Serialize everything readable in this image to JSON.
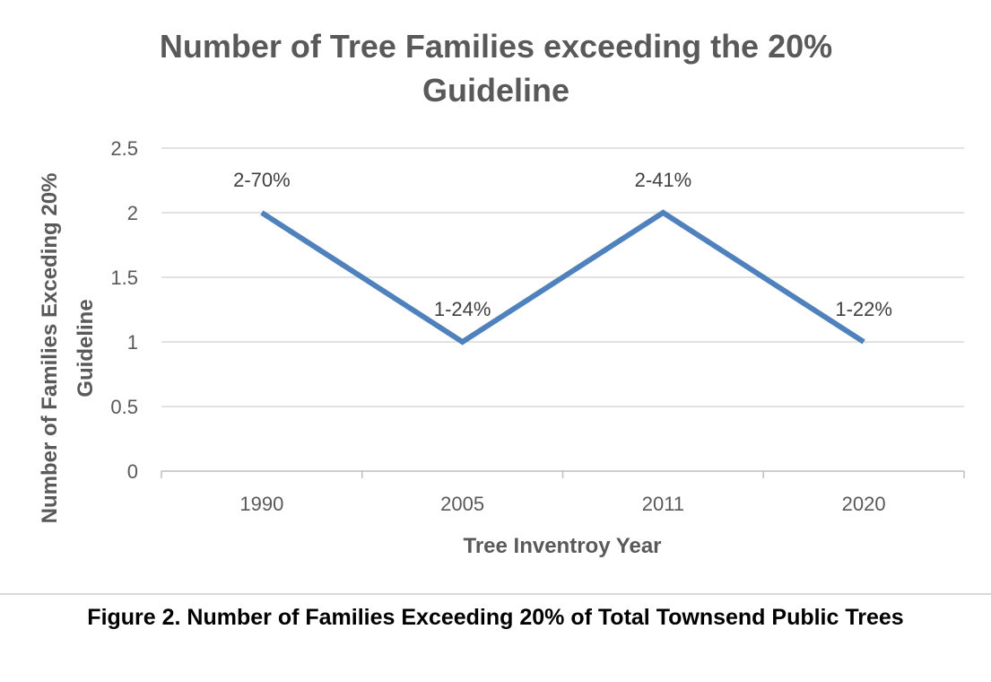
{
  "chart_data": {
    "type": "line",
    "title_lines": [
      "Number of Tree Families exceeding the 20%",
      "Guideline"
    ],
    "xlabel": "Tree Inventroy Year",
    "ylabel_lines": [
      "Number of Families Exceding 20%",
      "Guideline"
    ],
    "categories": [
      "1990",
      "2005",
      "2011",
      "2020"
    ],
    "series": [
      {
        "values": [
          2,
          1,
          2,
          1
        ],
        "data_labels": [
          "2-70%",
          "1-24%",
          "2-41%",
          "1-22%"
        ],
        "color": "#4f81bd"
      }
    ],
    "ylim": [
      0,
      2.5
    ],
    "yticks": [
      "0",
      "0.5",
      "1",
      "1.5",
      "2",
      "2.5"
    ],
    "grid": true,
    "legend": "none"
  },
  "caption": "Figure 2. Number of Families Exceeding 20% of Total Townsend Public Trees"
}
